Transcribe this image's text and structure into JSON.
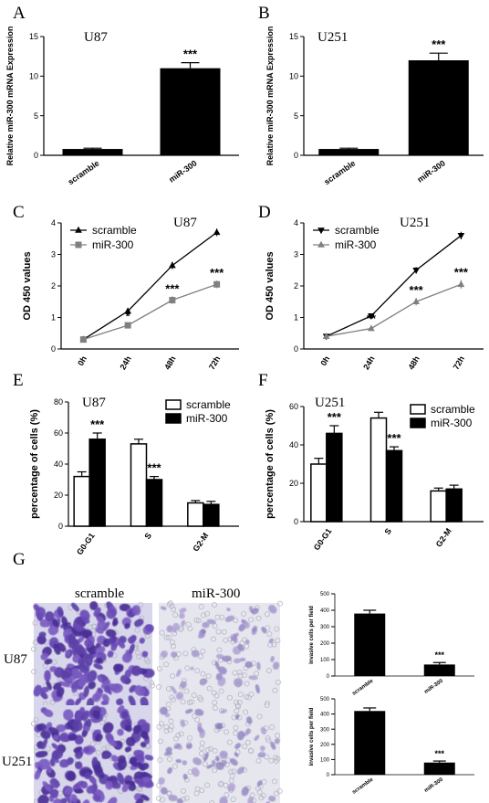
{
  "panel_labels": [
    "A",
    "B",
    "C",
    "D",
    "E",
    "F",
    "G"
  ],
  "micro_labels": {
    "scramble": "scramble",
    "mir300": "miR-300",
    "u87": "U87",
    "u251": "U251"
  },
  "colors": {
    "black": "#000000",
    "gray": "#808080",
    "white": "#ffffff"
  },
  "chart_data": [
    {
      "id": "A",
      "type": "bar",
      "title": "U87",
      "ylabel": "Relative miR-300 mRNA Expression",
      "categories": [
        "scramble",
        "miR-300"
      ],
      "values": [
        0.8,
        11.0
      ],
      "errors": [
        0.1,
        0.7
      ],
      "stars": [
        "",
        "***"
      ],
      "ylim": [
        0,
        15
      ],
      "yticks": [
        0,
        5,
        10,
        15
      ]
    },
    {
      "id": "B",
      "type": "bar",
      "title": "U251",
      "ylabel": "Relative miR-300 mRNA Expression",
      "categories": [
        "scramble",
        "miR-300"
      ],
      "values": [
        0.8,
        12.0
      ],
      "errors": [
        0.1,
        0.9
      ],
      "stars": [
        "",
        "***"
      ],
      "ylim": [
        0,
        15
      ],
      "yticks": [
        0,
        5,
        10,
        15
      ]
    },
    {
      "id": "C",
      "type": "line",
      "title": "U87",
      "ylabel": "OD 450 values",
      "x": [
        "0h",
        "24h",
        "48h",
        "72h"
      ],
      "series": [
        {
          "name": "scramble",
          "values": [
            0.3,
            1.2,
            2.65,
            3.7
          ],
          "errors": [
            0.05,
            0.05,
            0.12,
            0.12
          ],
          "marker": "triangle-up",
          "color": "#000000"
        },
        {
          "name": "miR-300",
          "values": [
            0.3,
            0.75,
            1.55,
            2.05
          ],
          "errors": [
            0.05,
            0.05,
            0.12,
            0.12
          ],
          "marker": "square",
          "color": "#808080"
        }
      ],
      "stars": [
        "",
        "*",
        "***",
        "***"
      ],
      "ylim": [
        0,
        4
      ],
      "yticks": [
        0,
        1,
        2,
        3,
        4
      ],
      "legend": "top-left"
    },
    {
      "id": "D",
      "type": "line",
      "title": "U251",
      "ylabel": "OD 450 values",
      "x": [
        "0h",
        "24h",
        "48h",
        "72h"
      ],
      "series": [
        {
          "name": "scramble",
          "values": [
            0.4,
            1.05,
            2.5,
            3.6
          ],
          "errors": [
            0.05,
            0.07,
            0.1,
            0.12
          ],
          "marker": "triangle-down",
          "color": "#000000"
        },
        {
          "name": "miR-300",
          "values": [
            0.4,
            0.65,
            1.5,
            2.05
          ],
          "errors": [
            0.05,
            0.07,
            0.12,
            0.14
          ],
          "marker": "triangle-up",
          "color": "#808080"
        }
      ],
      "stars": [
        "",
        "**",
        "***",
        "***"
      ],
      "ylim": [
        0,
        4
      ],
      "yticks": [
        0,
        1,
        2,
        3,
        4
      ],
      "legend": "top-left"
    },
    {
      "id": "E",
      "type": "bar",
      "title": "U87",
      "ylabel": "percentage of cells (%)",
      "categories": [
        "G0-G1",
        "S",
        "G2-M"
      ],
      "series": [
        {
          "name": "scramble",
          "values": [
            32,
            53,
            15
          ],
          "errors": [
            3,
            3,
            1.5
          ],
          "fill": "#ffffff"
        },
        {
          "name": "miR-300",
          "values": [
            56,
            30,
            14
          ],
          "errors": [
            4,
            2,
            2
          ],
          "fill": "#000000"
        }
      ],
      "stars": [
        "***",
        "***",
        ""
      ],
      "ylim": [
        0,
        80
      ],
      "yticks": [
        0,
        20,
        40,
        60,
        80
      ],
      "legend": "top-right"
    },
    {
      "id": "F",
      "type": "bar",
      "title": "U251",
      "ylabel": "percentage of cells (%)",
      "categories": [
        "G0-G1",
        "S",
        "G2-M"
      ],
      "series": [
        {
          "name": "scramble",
          "values": [
            30,
            54,
            16
          ],
          "errors": [
            3,
            3,
            1.5
          ],
          "fill": "#ffffff"
        },
        {
          "name": "miR-300",
          "values": [
            46,
            37,
            17
          ],
          "errors": [
            4,
            2,
            2
          ],
          "fill": "#000000"
        }
      ],
      "stars": [
        "***",
        "***",
        ""
      ],
      "ylim": [
        0,
        60
      ],
      "yticks": [
        0,
        20,
        40,
        60
      ],
      "legend": "top-right"
    },
    {
      "id": "G1",
      "type": "bar",
      "title": "",
      "ylabel": "invasive cells per field",
      "categories": [
        "scramble",
        "miR-300"
      ],
      "values": [
        380,
        70
      ],
      "errors": [
        20,
        12
      ],
      "stars": [
        "",
        "***"
      ],
      "ylim": [
        0,
        500
      ],
      "yticks": [
        0,
        100,
        200,
        300,
        400,
        500
      ]
    },
    {
      "id": "G2",
      "type": "bar",
      "title": "",
      "ylabel": "invasive cells per field",
      "categories": [
        "scramble",
        "miR-300"
      ],
      "values": [
        420,
        80
      ],
      "errors": [
        20,
        10
      ],
      "stars": [
        "",
        "***"
      ],
      "ylim": [
        0,
        500
      ],
      "yticks": [
        0,
        100,
        200,
        300,
        400,
        500
      ]
    }
  ]
}
